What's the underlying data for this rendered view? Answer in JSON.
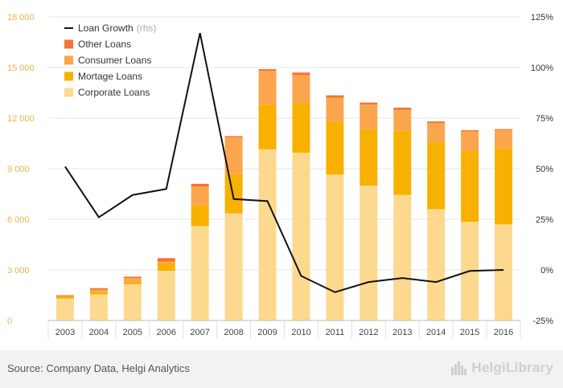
{
  "chart_data": {
    "type": "bar",
    "stacked": true,
    "categories": [
      "2003",
      "2004",
      "2005",
      "2006",
      "2007",
      "2008",
      "2009",
      "2010",
      "2011",
      "2012",
      "2013",
      "2014",
      "2015",
      "2016"
    ],
    "series": [
      {
        "name": "Corporate Loans",
        "kind": "bar",
        "axis": "left",
        "color": "#fcd98e",
        "values": [
          1300,
          1550,
          2150,
          2950,
          5600,
          6350,
          10150,
          9950,
          8650,
          8000,
          7450,
          6600,
          5850,
          5700
        ]
      },
      {
        "name": "Mortage Loans",
        "kind": "bar",
        "axis": "left",
        "color": "#f8b100",
        "values": [
          150,
          150,
          150,
          450,
          1250,
          2350,
          2650,
          2950,
          3150,
          3350,
          3800,
          3950,
          4200,
          4500
        ]
      },
      {
        "name": "Consumer Loans",
        "kind": "bar",
        "axis": "left",
        "color": "#fba64e",
        "values": [
          0,
          120,
          220,
          100,
          1100,
          2150,
          2000,
          1650,
          1400,
          1450,
          1250,
          1150,
          1150,
          1100
        ]
      },
      {
        "name": "Other Loans",
        "kind": "bar",
        "axis": "left",
        "color": "#f37332",
        "values": [
          50,
          100,
          80,
          200,
          150,
          80,
          100,
          150,
          150,
          120,
          120,
          100,
          80,
          50
        ]
      },
      {
        "name": "Loan Growth",
        "legend_note": "(rhs)",
        "kind": "line",
        "axis": "right",
        "color": "#111111",
        "values": [
          null,
          null,
          null,
          null,
          null,
          null,
          null,
          null,
          null,
          null,
          null,
          null,
          null,
          null
        ]
      }
    ],
    "line_series": {
      "name": "Loan Growth",
      "x": [
        "2003",
        "2004",
        "2005",
        "2006",
        "2007",
        "2008",
        "2009",
        "2010",
        "2011",
        "2012",
        "2013",
        "2014",
        "2015",
        "2016"
      ],
      "values": [
        51,
        26,
        37,
        40,
        117,
        35,
        34,
        -3,
        -11,
        -6,
        -4,
        -6,
        -0.5,
        0
      ]
    },
    "ylim": [
      0,
      18000
    ],
    "yticks": [
      "0",
      "3 000",
      "6 000",
      "9 000",
      "12 000",
      "15 000",
      "18 000"
    ],
    "y2lim": [
      -25,
      125
    ],
    "y2ticks": [
      "-25%",
      "0%",
      "25%",
      "50%",
      "75%",
      "100%",
      "125%"
    ],
    "xlabel": "",
    "ylabel": "",
    "legend_position": "top-left",
    "grid": true
  },
  "legend": [
    {
      "label": "Loan Growth",
      "note": "(rhs)",
      "type": "line",
      "color": "#111111"
    },
    {
      "label": "Other Loans",
      "type": "box",
      "color": "#f37332"
    },
    {
      "label": "Consumer Loans",
      "type": "box",
      "color": "#fba64e"
    },
    {
      "label": "Mortage Loans",
      "type": "box",
      "color": "#f8b100"
    },
    {
      "label": "Corporate Loans",
      "type": "box",
      "color": "#fcd98e"
    }
  ],
  "footer": {
    "source": "Source: Company Data, Helgi Analytics",
    "brand": "HelgiLibrary",
    "brand_icon": "city-skyline-icon"
  }
}
